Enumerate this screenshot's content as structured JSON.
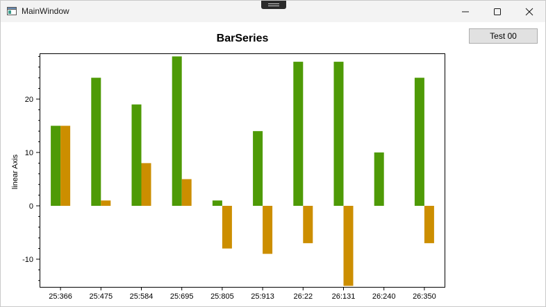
{
  "window": {
    "title": "MainWindow"
  },
  "toolbar": {
    "test_button_label": "Test 00"
  },
  "icons": {
    "app": "app-window-icon",
    "minimize": "minimize-icon",
    "maximize": "maximize-icon",
    "close": "close-icon"
  },
  "chart_data": {
    "type": "bar",
    "title": "BarSeries",
    "xlabel": "",
    "ylabel": "linear Axis",
    "categories": [
      "25:366",
      "25:475",
      "25:584",
      "25:695",
      "25:805",
      "25:913",
      "26:22",
      "26:131",
      "26:240",
      "26:350"
    ],
    "series": [
      {
        "color": "#4e9a06",
        "values": [
          15,
          24,
          19,
          28,
          1,
          14,
          27,
          27,
          10,
          24
        ]
      },
      {
        "color": "#cc8e00",
        "values": [
          15,
          1,
          8,
          5,
          -8,
          -9,
          -7,
          -15,
          null,
          -7
        ]
      }
    ],
    "ylim": [
      -15,
      28
    ],
    "yticks": [
      -10,
      0,
      10,
      20
    ],
    "grid": false,
    "legend": "none"
  }
}
